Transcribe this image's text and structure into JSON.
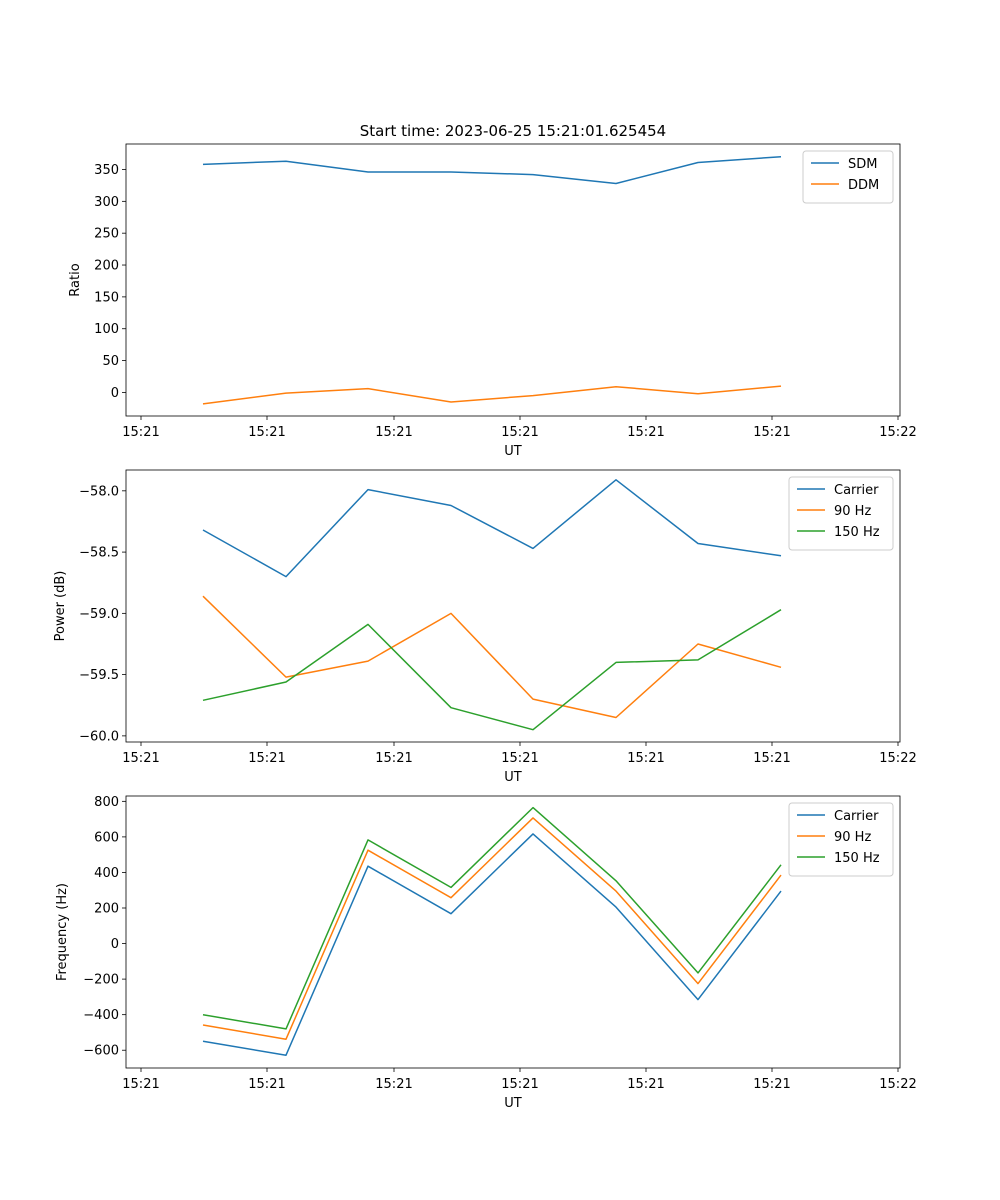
{
  "figure_title": "Start time: 2023-06-25 15:21:01.625454",
  "chart_data": [
    {
      "type": "line",
      "ylabel": "Ratio",
      "xlabel": "UT",
      "x_ticks": [
        "15:21",
        "15:21",
        "15:21",
        "15:21",
        "15:21",
        "15:21",
        "15:22"
      ],
      "ylim": [
        -37,
        390
      ],
      "y_ticks": [
        0,
        50,
        100,
        150,
        200,
        250,
        300,
        350
      ],
      "legend": "top-right",
      "series": [
        {
          "name": "SDM",
          "color": "#1f77b4",
          "values": [
            358,
            363,
            346,
            346,
            342,
            328,
            361,
            370
          ]
        },
        {
          "name": "DDM",
          "color": "#ff7f0e",
          "values": [
            -18,
            -1,
            6,
            -15,
            -5,
            9,
            -2,
            10
          ]
        }
      ]
    },
    {
      "type": "line",
      "ylabel": "Power (dB)",
      "xlabel": "UT",
      "x_ticks": [
        "15:21",
        "15:21",
        "15:21",
        "15:21",
        "15:21",
        "15:21",
        "15:22"
      ],
      "ylim": [
        -60.05,
        -57.83
      ],
      "y_ticks": [
        -60.0,
        -59.5,
        -59.0,
        -58.5,
        -58.0
      ],
      "y_tick_labels": [
        "−60.0",
        "−59.5",
        "−59.0",
        "−58.5",
        "−58.0"
      ],
      "legend": "top-right",
      "series": [
        {
          "name": "Carrier",
          "color": "#1f77b4",
          "values": [
            -58.32,
            -58.7,
            -57.99,
            -58.12,
            -58.47,
            -57.91,
            -58.43,
            -58.53
          ]
        },
        {
          "name": "90 Hz",
          "color": "#ff7f0e",
          "values": [
            -58.86,
            -59.52,
            -59.39,
            -59.0,
            -59.7,
            -59.85,
            -59.25,
            -59.44
          ]
        },
        {
          "name": "150 Hz",
          "color": "#2ca02c",
          "values": [
            -59.71,
            -59.56,
            -59.09,
            -59.77,
            -59.95,
            -59.4,
            -59.38,
            -58.97
          ]
        }
      ]
    },
    {
      "type": "line",
      "ylabel": "Frequency (Hz)",
      "xlabel": "UT",
      "x_ticks": [
        "15:21",
        "15:21",
        "15:21",
        "15:21",
        "15:21",
        "15:21",
        "15:22"
      ],
      "ylim": [
        -700,
        830
      ],
      "y_ticks": [
        -600,
        -400,
        -200,
        0,
        200,
        400,
        600,
        800
      ],
      "y_tick_labels": [
        "−600",
        "−400",
        "−200",
        "0",
        "200",
        "400",
        "600",
        "800"
      ],
      "legend": "top-right",
      "series": [
        {
          "name": "Carrier",
          "color": "#1f77b4",
          "values": [
            -550,
            -628,
            435,
            168,
            617,
            205,
            -315,
            295
          ]
        },
        {
          "name": "90 Hz",
          "color": "#ff7f0e",
          "values": [
            -458,
            -538,
            525,
            258,
            707,
            295,
            -225,
            385
          ]
        },
        {
          "name": "150 Hz",
          "color": "#2ca02c",
          "values": [
            -400,
            -480,
            583,
            316,
            765,
            353,
            -165,
            443
          ]
        }
      ]
    }
  ]
}
